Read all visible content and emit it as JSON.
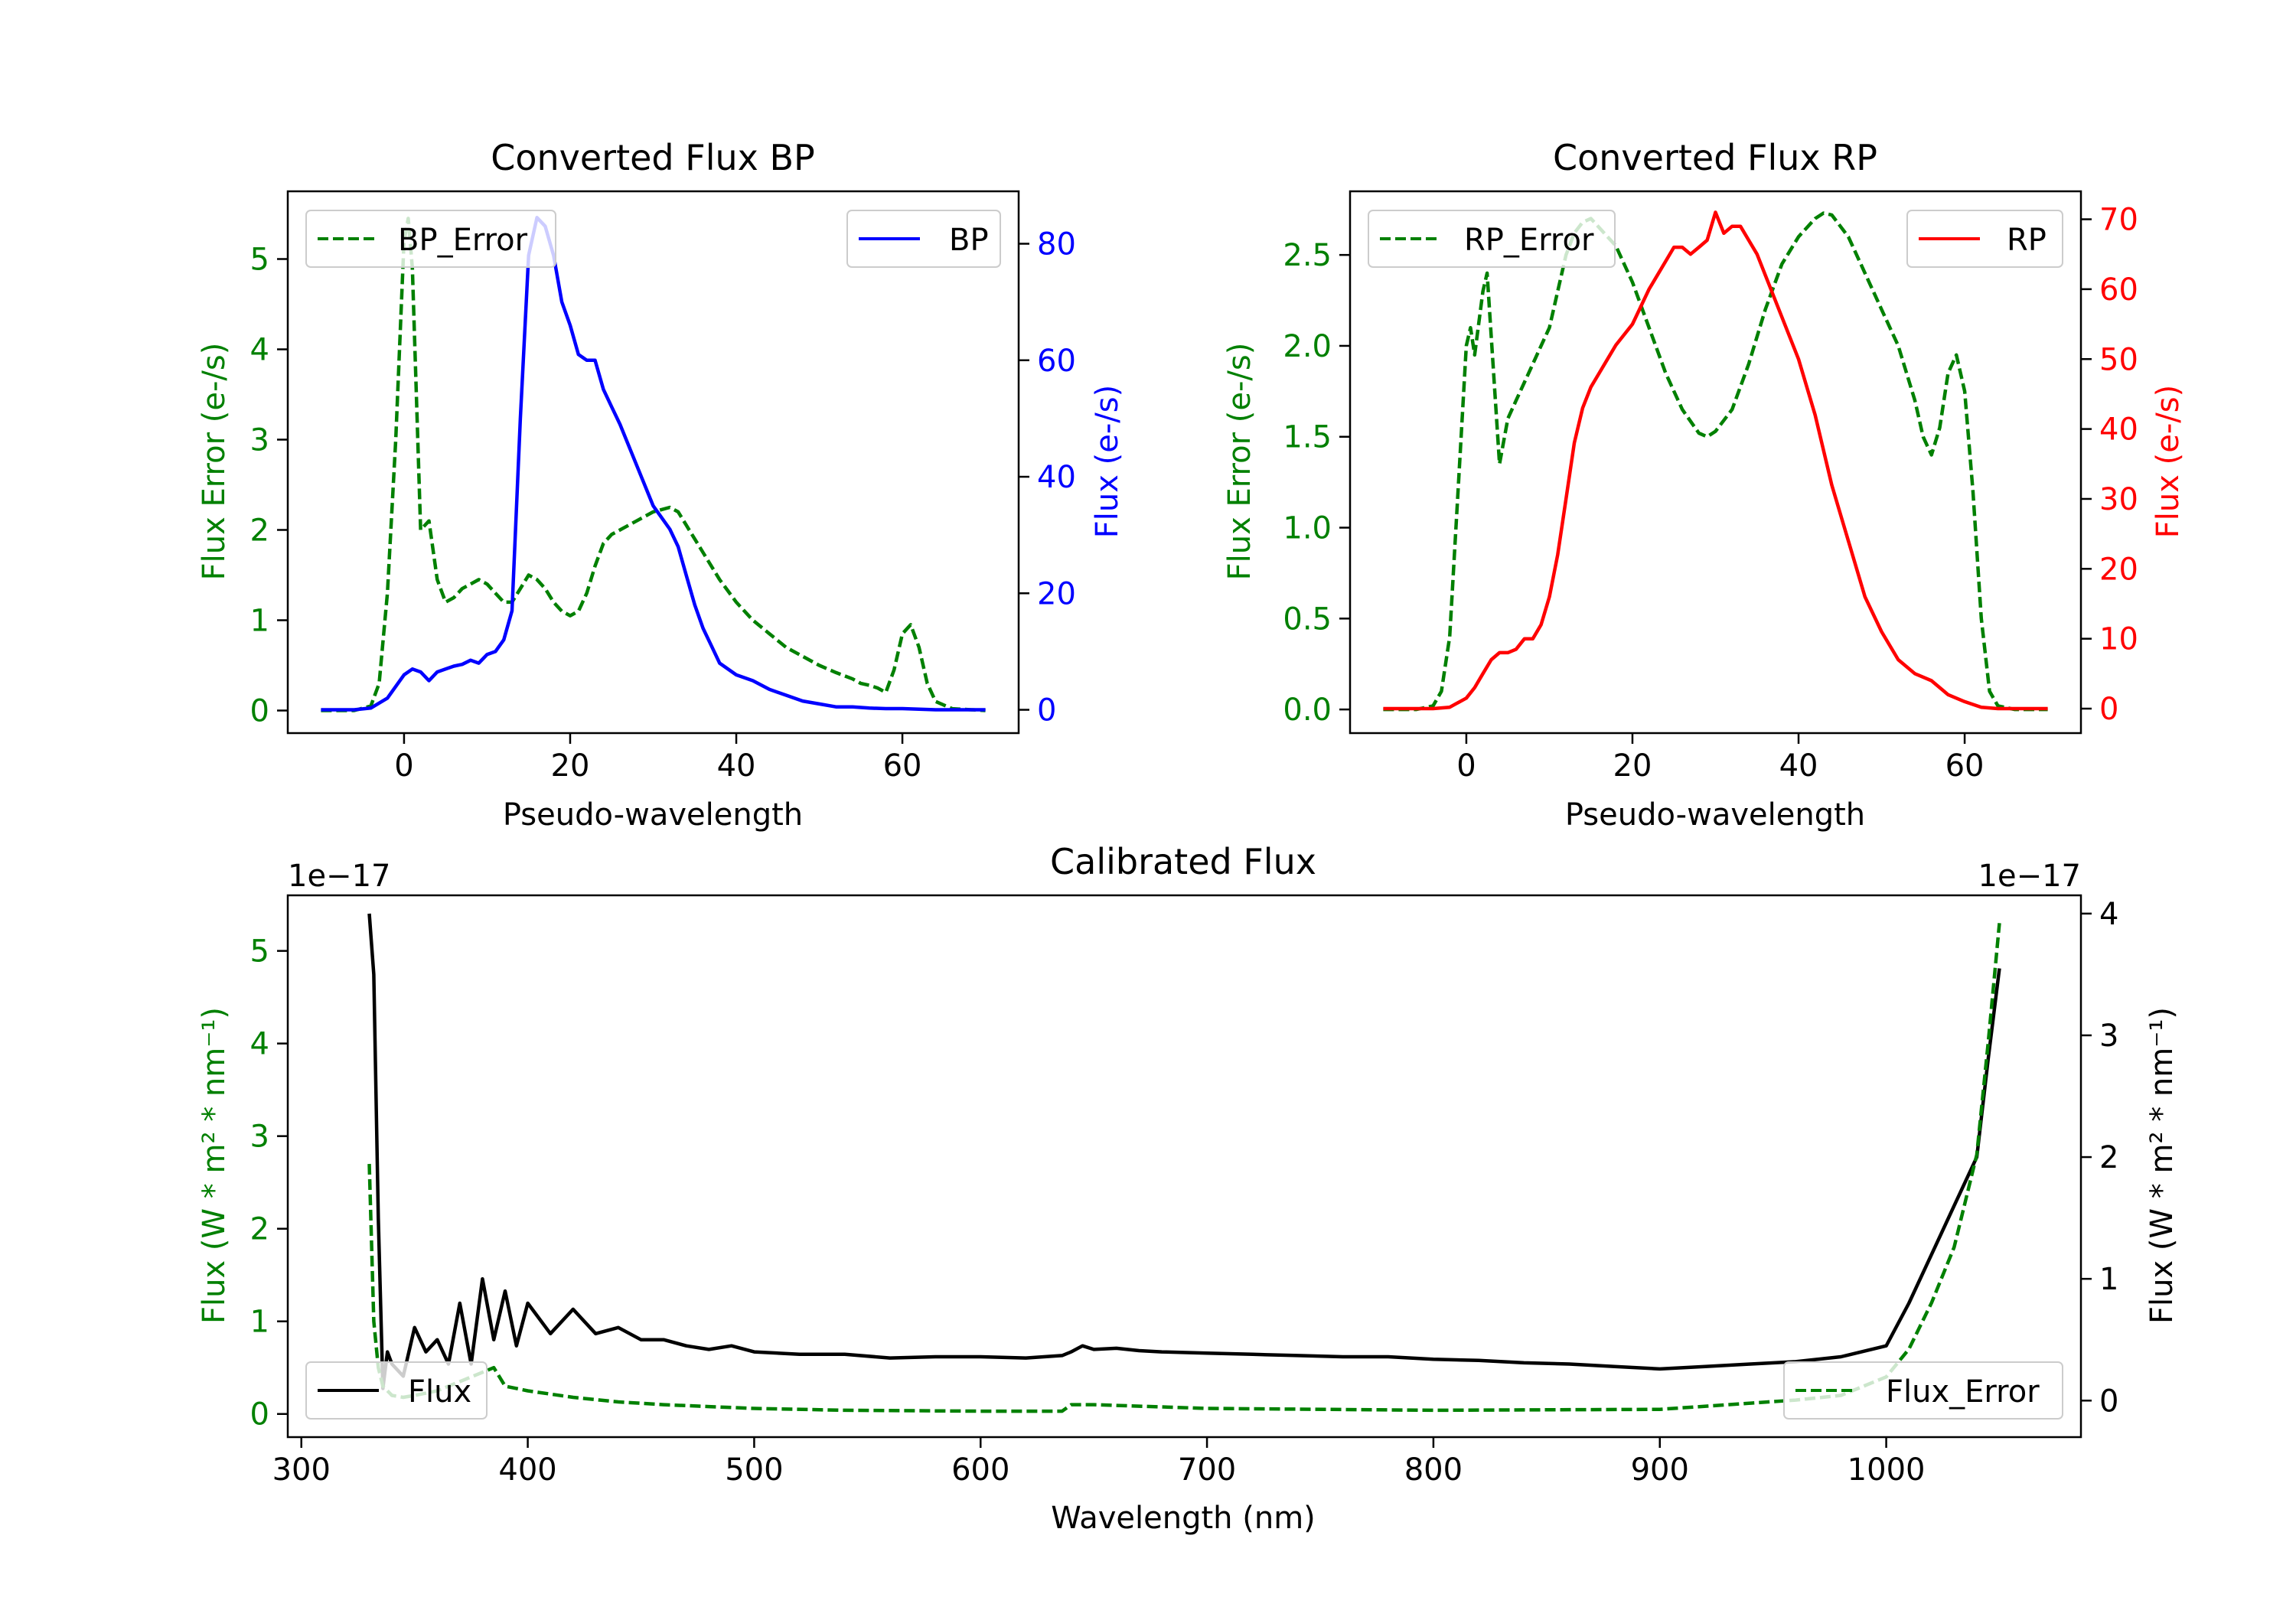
{
  "chart_data": [
    {
      "type": "line",
      "title": "Converted Flux BP",
      "xlabel": "Pseudo-wavelength",
      "ylabel_left": "Flux Error (e-/s)",
      "ylabel_right": "Flux (e-/s)",
      "xlim": [
        -14,
        74
      ],
      "ylim_left": [
        -0.25,
        5.75
      ],
      "ylim_right": [
        -4,
        89
      ],
      "xticks": [
        0,
        20,
        40,
        60
      ],
      "yticks_left": [
        0,
        1,
        2,
        3,
        4,
        5
      ],
      "yticks_right": [
        0,
        20,
        40,
        60,
        80
      ],
      "legend": [
        {
          "label": "BP_Error",
          "position": "upper-left",
          "axis": "left"
        },
        {
          "label": "BP",
          "position": "upper-right",
          "axis": "right"
        }
      ],
      "series": [
        {
          "name": "BP_Error",
          "axis": "left",
          "color": "#008000",
          "style": "dashed",
          "x": [
            -10,
            -6,
            -4,
            -3,
            -2,
            -1,
            0,
            0.5,
            1,
            2,
            3,
            4,
            5,
            6,
            7,
            8,
            9,
            10,
            11,
            12,
            13,
            14,
            15,
            16,
            17,
            18,
            19,
            20,
            21,
            22,
            23,
            24,
            25,
            26,
            28,
            30,
            32,
            33,
            34,
            36,
            38,
            40,
            42,
            44,
            46,
            48,
            50,
            52,
            54,
            55,
            56,
            57,
            58,
            59,
            60,
            61,
            62,
            63,
            64,
            66,
            70
          ],
          "y": [
            0,
            0,
            0.05,
            0.3,
            1.3,
            3.0,
            5.2,
            5.45,
            4.9,
            2.0,
            2.1,
            1.45,
            1.2,
            1.25,
            1.35,
            1.4,
            1.45,
            1.4,
            1.3,
            1.2,
            1.2,
            1.35,
            1.5,
            1.45,
            1.35,
            1.2,
            1.1,
            1.05,
            1.1,
            1.3,
            1.6,
            1.85,
            1.95,
            2.0,
            2.1,
            2.2,
            2.25,
            2.2,
            2.05,
            1.75,
            1.45,
            1.2,
            1.0,
            0.85,
            0.7,
            0.6,
            0.5,
            0.42,
            0.35,
            0.3,
            0.28,
            0.25,
            0.2,
            0.45,
            0.85,
            0.95,
            0.7,
            0.3,
            0.1,
            0.02,
            0
          ]
        },
        {
          "name": "BP",
          "axis": "right",
          "color": "#0000ff",
          "style": "solid",
          "x": [
            -10,
            -6,
            -4,
            -2,
            0,
            1,
            2,
            3,
            4,
            5,
            6,
            7,
            8,
            9,
            10,
            11,
            12,
            13,
            14,
            15,
            16,
            17,
            18,
            19,
            20,
            21,
            22,
            23,
            24,
            25,
            26,
            28,
            30,
            31,
            32,
            33,
            34,
            35,
            36,
            37,
            38,
            40,
            42,
            44,
            46,
            48,
            50,
            52,
            54,
            56,
            58,
            60,
            62,
            64,
            66,
            70
          ],
          "y": [
            0,
            0,
            0.3,
            2,
            6,
            7,
            6.5,
            5,
            6.5,
            7,
            7.5,
            7.8,
            8.5,
            8,
            9.5,
            10,
            12,
            17,
            50,
            78,
            84.5,
            83,
            78,
            70,
            66,
            61,
            60,
            60,
            55,
            52,
            49,
            42,
            35,
            33,
            31,
            28,
            23,
            18,
            14,
            11,
            8,
            6,
            5,
            3.5,
            2.5,
            1.5,
            1,
            0.5,
            0.5,
            0.3,
            0.2,
            0.2,
            0.1,
            0,
            0,
            0
          ]
        }
      ]
    },
    {
      "type": "line",
      "title": "Converted Flux RP",
      "xlabel": "Pseudo-wavelength",
      "ylabel_left": "Flux Error (e-/s)",
      "ylabel_right": "Flux (e-/s)",
      "xlim": [
        -14,
        74
      ],
      "ylim_left": [
        -0.13,
        2.85
      ],
      "ylim_right": [
        -3.5,
        74
      ],
      "xticks": [
        0,
        20,
        40,
        60
      ],
      "yticks_left": [
        "0.0",
        "0.5",
        "1.0",
        "1.5",
        "2.0",
        "2.5"
      ],
      "yticks_right": [
        0,
        10,
        20,
        30,
        40,
        50,
        60,
        70
      ],
      "legend": [
        {
          "label": "RP_Error",
          "position": "upper-left",
          "axis": "left"
        },
        {
          "label": "RP",
          "position": "upper-right",
          "axis": "right"
        }
      ],
      "series": [
        {
          "name": "RP_Error",
          "axis": "left",
          "color": "#008000",
          "style": "dashed",
          "x": [
            -10,
            -6,
            -4,
            -3,
            -2,
            -1,
            0,
            0.5,
            1,
            2,
            2.5,
            3,
            4,
            5,
            6,
            7,
            8,
            9,
            10,
            11,
            12,
            13,
            14,
            15,
            16,
            17,
            18,
            20,
            22,
            24,
            26,
            28,
            29,
            30,
            32,
            34,
            36,
            38,
            40,
            42,
            43,
            44,
            46,
            48,
            50,
            52,
            54,
            55,
            56,
            57,
            58,
            59,
            60,
            61,
            62,
            63,
            64,
            66,
            70
          ],
          "y": [
            0,
            0,
            0.02,
            0.1,
            0.4,
            1.2,
            2.0,
            2.1,
            1.95,
            2.3,
            2.4,
            2.05,
            1.35,
            1.6,
            1.7,
            1.8,
            1.9,
            2.0,
            2.1,
            2.3,
            2.5,
            2.62,
            2.68,
            2.7,
            2.65,
            2.6,
            2.55,
            2.35,
            2.1,
            1.85,
            1.65,
            1.52,
            1.5,
            1.53,
            1.65,
            1.9,
            2.2,
            2.45,
            2.6,
            2.7,
            2.73,
            2.72,
            2.6,
            2.4,
            2.2,
            2.0,
            1.7,
            1.5,
            1.4,
            1.55,
            1.85,
            1.95,
            1.75,
            1.2,
            0.5,
            0.1,
            0.02,
            0,
            0
          ]
        },
        {
          "name": "RP",
          "axis": "right",
          "color": "#ff0000",
          "style": "solid",
          "x": [
            -10,
            -6,
            -4,
            -2,
            0,
            1,
            2,
            3,
            4,
            5,
            6,
            7,
            8,
            9,
            10,
            11,
            12,
            13,
            14,
            15,
            16,
            17,
            18,
            20,
            22,
            24,
            25,
            26,
            27,
            28,
            29,
            30,
            31,
            32,
            33,
            34,
            35,
            36,
            38,
            40,
            42,
            44,
            46,
            48,
            50,
            52,
            54,
            56,
            58,
            60,
            62,
            64,
            66,
            70
          ],
          "y": [
            0,
            0,
            0,
            0.2,
            1.5,
            3,
            5,
            7,
            8,
            8,
            8.5,
            10,
            10,
            12,
            16,
            22,
            30,
            38,
            43,
            46,
            48,
            50,
            52,
            55,
            60,
            64,
            66,
            66,
            65,
            66,
            67,
            71,
            68,
            69,
            69,
            67,
            65,
            62,
            56,
            50,
            42,
            32,
            24,
            16,
            11,
            7,
            5,
            4,
            2,
            1,
            0.2,
            0,
            0,
            0
          ]
        }
      ]
    },
    {
      "type": "line",
      "title": "Calibrated Flux",
      "xlabel": "Wavelength (nm)",
      "ylabel_left": "Flux (W * m² * nm⁻¹)",
      "ylabel_right": "Flux (W * m² * nm⁻¹)",
      "offset_left": "1e−17",
      "offset_right": "1e−17",
      "xlim": [
        294,
        1086
      ],
      "ylim_left": [
        -0.25,
        5.6
      ],
      "ylim_right": [
        -0.3,
        4.15
      ],
      "xticks": [
        300,
        400,
        500,
        600,
        700,
        800,
        900,
        1000
      ],
      "yticks_left": [
        0,
        1,
        2,
        3,
        4,
        5
      ],
      "yticks_right": [
        0,
        1,
        2,
        3,
        4
      ],
      "legend": [
        {
          "label": "Flux",
          "position": "lower-left",
          "axis": "right"
        },
        {
          "label": "Flux_Error",
          "position": "lower-right",
          "axis": "left"
        }
      ],
      "series": [
        {
          "name": "Flux",
          "axis": "right",
          "color": "#000000",
          "style": "solid",
          "x": [
            330,
            332,
            334,
            336,
            338,
            340,
            345,
            350,
            355,
            360,
            365,
            370,
            375,
            380,
            385,
            390,
            395,
            400,
            410,
            420,
            430,
            440,
            450,
            460,
            470,
            480,
            490,
            500,
            520,
            540,
            560,
            580,
            600,
            620,
            636,
            640,
            645,
            650,
            660,
            670,
            680,
            700,
            720,
            740,
            760,
            780,
            800,
            820,
            840,
            860,
            880,
            900,
            920,
            940,
            960,
            980,
            1000,
            1010,
            1020,
            1030,
            1040,
            1045,
            1050
          ],
          "y": [
            4.0,
            3.5,
            1.5,
            0.1,
            0.4,
            0.3,
            0.2,
            0.6,
            0.4,
            0.5,
            0.3,
            0.8,
            0.3,
            1.0,
            0.5,
            0.9,
            0.45,
            0.8,
            0.55,
            0.75,
            0.55,
            0.6,
            0.5,
            0.5,
            0.45,
            0.42,
            0.45,
            0.4,
            0.38,
            0.38,
            0.35,
            0.36,
            0.36,
            0.35,
            0.37,
            0.4,
            0.45,
            0.42,
            0.43,
            0.41,
            0.4,
            0.39,
            0.38,
            0.37,
            0.36,
            0.36,
            0.34,
            0.33,
            0.31,
            0.3,
            0.28,
            0.26,
            0.28,
            0.3,
            0.32,
            0.36,
            0.45,
            0.8,
            1.2,
            1.6,
            2.0,
            2.8,
            3.55
          ]
        },
        {
          "name": "Flux_Error",
          "axis": "left",
          "color": "#008000",
          "style": "dashed",
          "x": [
            330,
            332,
            334,
            336,
            340,
            345,
            350,
            360,
            370,
            380,
            385,
            390,
            400,
            420,
            440,
            460,
            480,
            500,
            540,
            600,
            636,
            640,
            650,
            700,
            800,
            900,
            960,
            980,
            1000,
            1010,
            1020,
            1030,
            1040,
            1045,
            1050
          ],
          "y": [
            2.7,
            1.0,
            0.5,
            0.3,
            0.2,
            0.18,
            0.2,
            0.25,
            0.35,
            0.45,
            0.5,
            0.3,
            0.25,
            0.18,
            0.13,
            0.1,
            0.08,
            0.06,
            0.04,
            0.03,
            0.03,
            0.1,
            0.1,
            0.06,
            0.04,
            0.05,
            0.15,
            0.2,
            0.4,
            0.7,
            1.2,
            1.8,
            2.8,
            4.0,
            5.3
          ]
        }
      ]
    }
  ]
}
